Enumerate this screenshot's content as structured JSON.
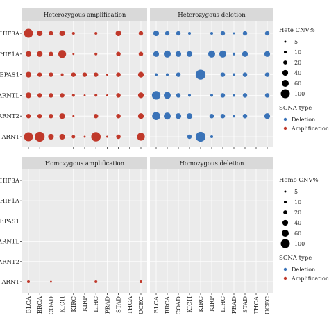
{
  "chart_data": {
    "type": "dot-matrix",
    "genes": [
      "HIF3A",
      "HIF1A",
      "EPAS1",
      "ARNTL",
      "ARNT2",
      "ARNT"
    ],
    "cancers": [
      "BLCA",
      "BRCA",
      "COAD",
      "KICH",
      "KIRC",
      "KIRP",
      "LIHC",
      "PRAD",
      "STAD",
      "THCA",
      "UCEC"
    ],
    "panels": [
      {
        "title": "Heterozygous amplification",
        "scna_type": "Amplification",
        "values": [
          [
            100,
            40,
            25,
            40,
            10,
            0,
            10,
            0,
            40,
            0,
            25
          ],
          [
            40,
            40,
            25,
            75,
            5,
            0,
            10,
            0,
            25,
            0,
            25
          ],
          [
            40,
            25,
            25,
            10,
            25,
            25,
            25,
            5,
            25,
            0,
            40
          ],
          [
            40,
            25,
            25,
            25,
            10,
            5,
            10,
            5,
            25,
            0,
            40
          ],
          [
            25,
            25,
            25,
            40,
            5,
            0,
            25,
            0,
            25,
            0,
            40
          ],
          [
            100,
            120,
            40,
            40,
            15,
            5,
            110,
            5,
            25,
            0,
            75
          ]
        ]
      },
      {
        "title": "Heterozygous deletion",
        "scna_type": "Deletion",
        "values": [
          [
            40,
            25,
            25,
            10,
            0,
            10,
            25,
            5,
            25,
            0,
            25
          ],
          [
            40,
            60,
            40,
            40,
            0,
            60,
            60,
            10,
            40,
            0,
            40
          ],
          [
            10,
            10,
            25,
            0,
            120,
            0,
            25,
            10,
            25,
            0,
            25
          ],
          [
            90,
            60,
            25,
            10,
            0,
            10,
            25,
            10,
            25,
            0,
            25
          ],
          [
            80,
            60,
            40,
            40,
            0,
            25,
            25,
            10,
            25,
            0,
            40
          ],
          [
            0,
            0,
            0,
            25,
            120,
            10,
            0,
            0,
            0,
            0,
            0
          ]
        ]
      },
      {
        "title": "Homozygous amplification",
        "scna_type": "Amplification",
        "values": [
          [
            0,
            0,
            0,
            0,
            0,
            0,
            0,
            0,
            0,
            0,
            0
          ],
          [
            0,
            0,
            0,
            0,
            0,
            0,
            0,
            0,
            0,
            0,
            0
          ],
          [
            0,
            0,
            0,
            0,
            0,
            0,
            0,
            0,
            0,
            0,
            0
          ],
          [
            0,
            0,
            0,
            0,
            0,
            0,
            0,
            0,
            0,
            0,
            0
          ],
          [
            0,
            0,
            0,
            0,
            0,
            0,
            0,
            0,
            0,
            0,
            0
          ],
          [
            10,
            0,
            5,
            0,
            0,
            0,
            10,
            0,
            0,
            0,
            10
          ]
        ]
      },
      {
        "title": "Homozygous deletion",
        "scna_type": "Deletion",
        "values": [
          [
            0,
            0,
            0,
            0,
            0,
            0,
            0,
            0,
            0,
            0,
            0
          ],
          [
            0,
            0,
            0,
            0,
            0,
            0,
            0,
            0,
            0,
            0,
            0
          ],
          [
            0,
            0,
            0,
            0,
            0,
            0,
            0,
            0,
            0,
            0,
            0
          ],
          [
            0,
            0,
            0,
            0,
            0,
            0,
            0,
            0,
            0,
            0,
            0
          ],
          [
            0,
            0,
            0,
            0,
            0,
            0,
            0,
            0,
            0,
            0,
            0
          ],
          [
            0,
            0,
            0,
            0,
            0,
            0,
            0,
            0,
            0,
            0,
            0
          ]
        ]
      }
    ],
    "legends": [
      {
        "size_title": "Hete CNV%",
        "size_values": [
          5,
          10,
          20,
          40,
          60,
          100
        ],
        "size_labels": [
          "5",
          "10",
          "20",
          "40",
          "60",
          "100"
        ],
        "type_title": "SCNA type",
        "type_items": [
          {
            "label": "Deletion",
            "color": "#3a73b8"
          },
          {
            "label": "Amplification",
            "color": "#c0392b"
          }
        ]
      },
      {
        "size_title": "Homo CNV%",
        "size_values": [
          5,
          10,
          20,
          40,
          60,
          100
        ],
        "size_labels": [
          "5",
          "10",
          "20",
          "40",
          "60",
          "100"
        ],
        "type_title": "SCNA type",
        "type_items": [
          {
            "label": "Deletion",
            "color": "#3a73b8"
          },
          {
            "label": "Amplification",
            "color": "#c0392b"
          }
        ]
      }
    ],
    "colors": {
      "Amplification": "#c0392b",
      "Deletion": "#3a73b8",
      "panel_background": "#ebebeb",
      "strip_background": "#d9d9d9",
      "grid": "#ffffff"
    },
    "grid": true
  }
}
